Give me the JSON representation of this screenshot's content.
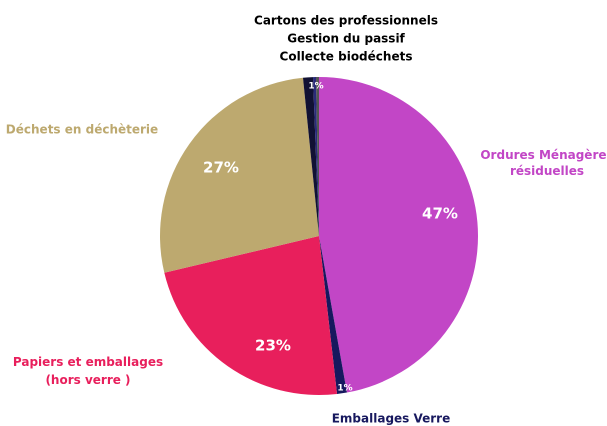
{
  "chart_data": {
    "type": "pie",
    "categories": [
      "Ordures Ménagères résiduelles",
      "Emballages Verre",
      "Papiers et emballages (hors verre )",
      "Déchets en déchèterie",
      "Cartons des professionnels",
      "Gestion du passif",
      "Collecte biodéchets"
    ],
    "values": [
      47,
      1,
      23,
      27,
      1,
      0.3,
      0.3
    ],
    "value_labels": [
      "47%",
      "1%",
      "23%",
      "27%",
      "1%",
      null,
      null
    ],
    "colors": [
      "#c246c6",
      "#17185e",
      "#e81f5c",
      "#bda96f",
      "#111133",
      "#2a2a7a",
      "#555555"
    ]
  }
}
